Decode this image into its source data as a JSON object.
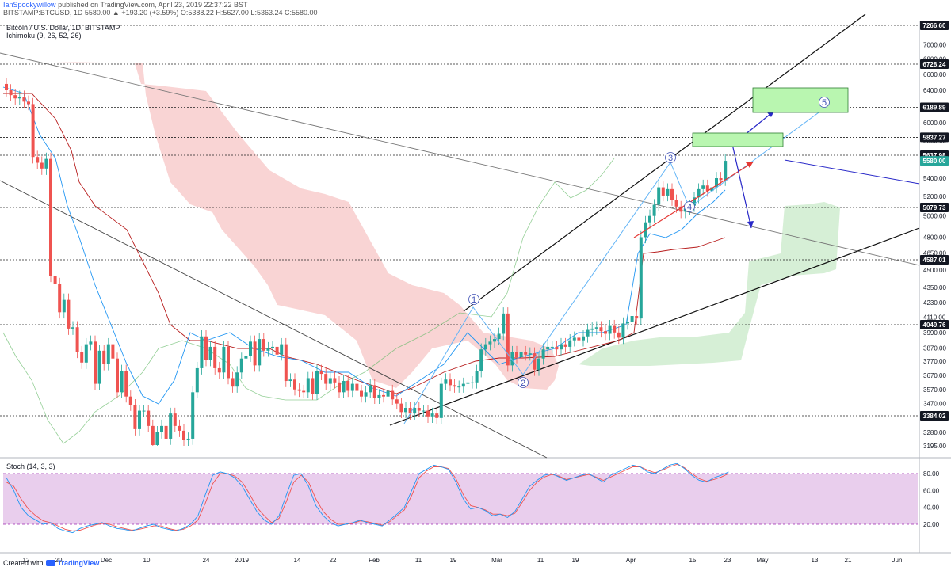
{
  "header": {
    "user": "IanSpookywillow",
    "published": "published on TradingView.com, April 23, 2019 22:37:22 BST",
    "symbol": "BITSTAMP:BTCUSD, 1D",
    "ohlc": "5580.00 ▲ +193.20 (+3.59%) O:5388.22 H:5627.00 L:5363.24 C:5580.00"
  },
  "chart_title": "Bitcoin / U.S. Dollar, 1D, BITSTAMP",
  "indicator_label": "Ichimoku (9, 26, 52, 26)",
  "stoch_label": "Stoch (14, 3, 3)",
  "footer": {
    "prefix": "Created with",
    "brand": "TradingView"
  },
  "colors": {
    "up": "#26a69a",
    "down": "#ef5350",
    "cloud_bear": "#f8c9c9",
    "cloud_bull": "#cfeccf",
    "tenkan": "#2196f3",
    "kijun": "#b71c1c",
    "stoch_k": "#2196f3",
    "stoch_d": "#ef5350",
    "stoch_band": "#e1bee7",
    "target_box": "#b9f6b0",
    "wave": "#3f51b5"
  },
  "chart_data": {
    "type": "candlestick",
    "title": "Bitcoin / U.S. Dollar, 1D, BITSTAMP",
    "y_ticks": [
      7000,
      6800,
      6600,
      6400,
      6200,
      6000,
      5800,
      5600,
      5400,
      5200,
      5000,
      4800,
      4650,
      4500,
      4350,
      4230,
      4110,
      3990,
      3870,
      3770,
      3670,
      3570,
      3470,
      3370,
      3280,
      3195
    ],
    "price_tags": [
      {
        "label": "7266.60",
        "value": 7266.6
      },
      {
        "label": "6728.24",
        "value": 6728.24
      },
      {
        "label": "6189.89",
        "value": 6189.89
      },
      {
        "label": "5837.27",
        "value": 5837.27
      },
      {
        "label": "5637.98",
        "value": 5637.98
      },
      {
        "label": "5580.00",
        "value": 5580.0
      },
      {
        "label": "5079.73",
        "value": 5079.73
      },
      {
        "label": "4587.01",
        "value": 4587.01
      },
      {
        "label": "4049.76",
        "value": 4049.76
      },
      {
        "label": "3384.02",
        "value": 3384.02
      }
    ],
    "x_ticks": [
      "12",
      "20",
      "Dec",
      "10",
      "24",
      "2019",
      "14",
      "22",
      "Feb",
      "11",
      "19",
      "Mar",
      "11",
      "19",
      "Apr",
      "15",
      "23",
      "May",
      "13",
      "21",
      "Jun"
    ],
    "wave_labels": [
      "1",
      "2",
      "3",
      "4",
      "5"
    ],
    "stoch_ticks": [
      "80.00",
      "60.00",
      "40.00",
      "20.00"
    ],
    "stoch_band": [
      20,
      80
    ],
    "candles_close": [
      6400,
      6340,
      6300,
      6320,
      6260,
      6230,
      5620,
      5560,
      5500,
      5600,
      4450,
      4380,
      4150,
      4250,
      4020,
      4030,
      3840,
      3760,
      3900,
      3920,
      3610,
      3850,
      3750,
      3900,
      3790,
      3550,
      3700,
      3520,
      3460,
      3300,
      3420,
      3420,
      3320,
      3200,
      3280,
      3320,
      3240,
      3400,
      3320,
      3290,
      3230,
      3240,
      3550,
      3720,
      3960,
      3780,
      3880,
      3720,
      3690,
      3880,
      3650,
      3590,
      3690,
      3790,
      3810,
      3920,
      3740,
      3940,
      3850,
      3870,
      3880,
      3820,
      3900,
      3630,
      3640,
      3570,
      3560,
      3550,
      3650,
      3540,
      3700,
      3680,
      3610,
      3650,
      3620,
      3550,
      3630,
      3560,
      3610,
      3560,
      3520,
      3550,
      3600,
      3510,
      3530,
      3520,
      3560,
      3500,
      3470,
      3410,
      3440,
      3400,
      3440,
      3420,
      3420,
      3380,
      3400,
      3370,
      3610,
      3640,
      3600,
      3590,
      3590,
      3610,
      3620,
      3620,
      3700,
      3860,
      3900,
      3920,
      3940,
      3980,
      4140,
      3740,
      3840,
      3800,
      3840,
      3820,
      3830,
      3710,
      3790,
      3860,
      3880,
      3880,
      3860,
      3900,
      3880,
      3930,
      3950,
      3930,
      3960,
      4010,
      4020,
      4030,
      4000,
      3980,
      4040,
      3990,
      3950,
      4060,
      4070,
      4120,
      4100,
      4800,
      4940,
      5000,
      5110,
      5300,
      5210,
      5280,
      5160,
      5090,
      5040,
      5070,
      5100,
      5190,
      5280,
      5320,
      5260,
      5300,
      5400,
      5380,
      5580
    ],
    "stoch_k": [
      75,
      60,
      40,
      30,
      25,
      20,
      22,
      15,
      12,
      10,
      15,
      18,
      20,
      22,
      18,
      15,
      14,
      12,
      15,
      18,
      20,
      16,
      14,
      12,
      15,
      20,
      30,
      55,
      78,
      82,
      80,
      75,
      65,
      50,
      35,
      25,
      20,
      30,
      55,
      78,
      80,
      65,
      42,
      30,
      22,
      18,
      20,
      22,
      25,
      22,
      20,
      18,
      25,
      32,
      40,
      60,
      80,
      85,
      90,
      88,
      85,
      70,
      50,
      38,
      40,
      36,
      30,
      32,
      28,
      35,
      50,
      65,
      72,
      78,
      80,
      76,
      72,
      75,
      78,
      80,
      75,
      70,
      78,
      82,
      86,
      90,
      88,
      82,
      80,
      85,
      90,
      92,
      86,
      78,
      72,
      70,
      75,
      78,
      82
    ],
    "stoch_d": [
      70,
      65,
      50,
      38,
      30,
      24,
      22,
      18,
      14,
      12,
      13,
      16,
      19,
      21,
      20,
      17,
      15,
      13,
      14,
      16,
      18,
      18,
      15,
      13,
      14,
      18,
      25,
      45,
      68,
      80,
      80,
      77,
      70,
      56,
      40,
      30,
      22,
      27,
      47,
      70,
      78,
      70,
      50,
      35,
      26,
      20,
      20,
      21,
      24,
      23,
      21,
      19,
      23,
      30,
      37,
      54,
      75,
      83,
      88,
      88,
      86,
      74,
      55,
      42,
      40,
      37,
      32,
      32,
      30,
      33,
      46,
      60,
      70,
      76,
      79,
      77,
      73,
      75,
      77,
      79,
      76,
      72,
      76,
      80,
      84,
      88,
      88,
      84,
      81,
      84,
      88,
      91,
      87,
      80,
      74,
      71,
      73,
      76,
      80
    ]
  }
}
